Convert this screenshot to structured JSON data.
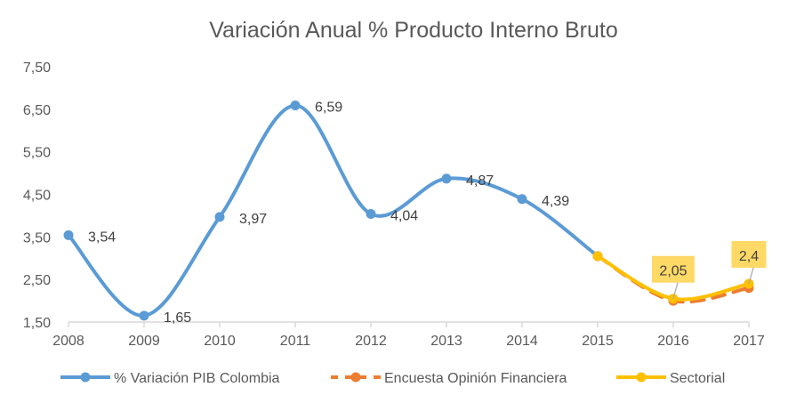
{
  "chart_data": {
    "type": "line",
    "title": "Variación Anual % Producto Interno Bruto",
    "xlabel": "",
    "ylabel": "",
    "categories": [
      "2008",
      "2009",
      "2010",
      "2011",
      "2012",
      "2013",
      "2014",
      "2015",
      "2016",
      "2017"
    ],
    "ylim": [
      1.5,
      7.5
    ],
    "yticks": [
      "1,50",
      "2,50",
      "3,50",
      "4,50",
      "5,50",
      "6,50",
      "7,50"
    ],
    "grid": false,
    "legend": "bottom",
    "smooth": true,
    "series": [
      {
        "name": "% Variación PIB Colombia",
        "color": "#5B9BD5",
        "dash": false,
        "values": [
          3.54,
          1.65,
          3.97,
          6.59,
          4.04,
          4.87,
          4.39,
          3.05,
          null,
          null
        ],
        "labels": [
          "3,54",
          "1,65",
          "3,97",
          "6,59",
          "4,04",
          "4,87",
          "4,39",
          null,
          null,
          null
        ]
      },
      {
        "name": "Encuesta Opinión Financiera",
        "color": "#ED7D31",
        "dash": true,
        "values": [
          null,
          null,
          null,
          null,
          null,
          null,
          null,
          3.05,
          2.0,
          2.3
        ],
        "labels": [
          null,
          null,
          null,
          null,
          null,
          null,
          null,
          null,
          null,
          null
        ]
      },
      {
        "name": "Sectorial",
        "color": "#FFC000",
        "dash": false,
        "values": [
          null,
          null,
          null,
          null,
          null,
          null,
          null,
          3.05,
          2.05,
          2.4
        ],
        "labels": [
          null,
          null,
          null,
          null,
          null,
          null,
          null,
          null,
          "2,05",
          "2,4"
        ],
        "label_fill": "#FFD966"
      }
    ]
  }
}
